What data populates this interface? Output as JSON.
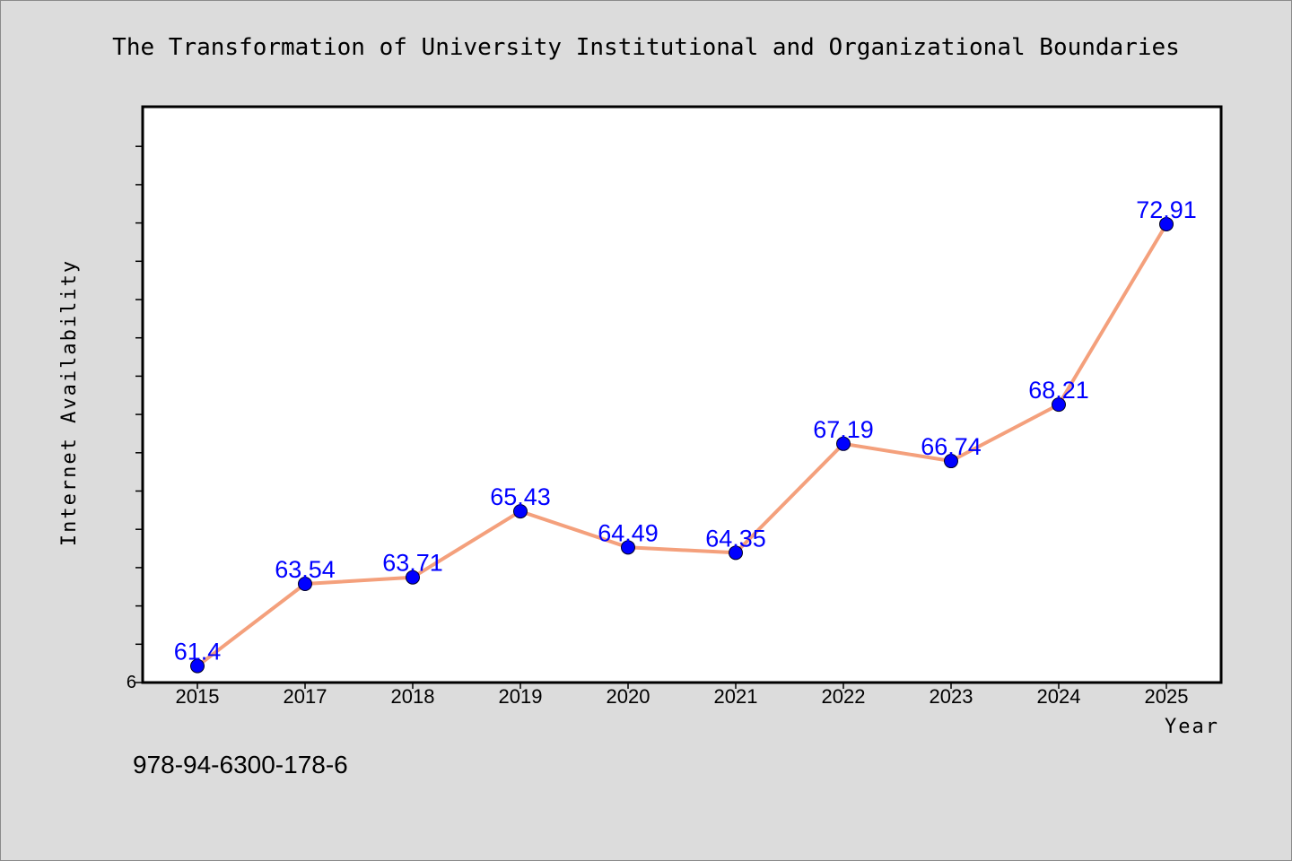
{
  "chart_data": {
    "type": "line",
    "title": "The Transformation of University Institutional and Organizational Boundaries",
    "xlabel": "Year",
    "ylabel": "Internet Availability",
    "categories": [
      "2015",
      "2017",
      "2018",
      "2019",
      "2020",
      "2021",
      "2022",
      "2023",
      "2024",
      "2025"
    ],
    "series": [
      {
        "values": [
          61.4,
          63.54,
          63.71,
          65.43,
          64.49,
          64.35,
          67.19,
          66.74,
          68.21,
          72.91
        ],
        "labels": [
          "61.4",
          "63.54",
          "63.71",
          "65.43",
          "64.49",
          "64.35",
          "67.19",
          "66.74",
          "68.21",
          "72.91"
        ],
        "line_color": "#f4a07c",
        "marker_color": "#0000ff"
      }
    ],
    "ylim": [
      60.97,
      75.97
    ],
    "y_tick_label": "6",
    "grid": false,
    "legend": "none"
  },
  "footer": {
    "isbn": "978-94-6300-178-6"
  }
}
